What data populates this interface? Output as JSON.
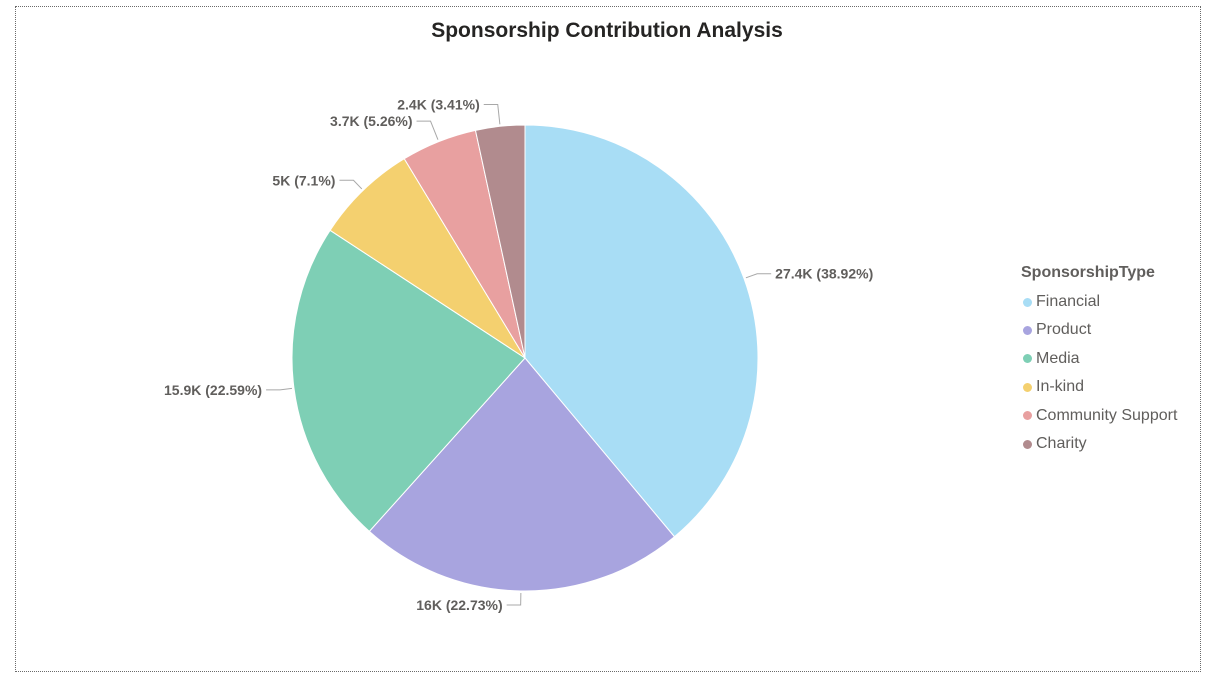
{
  "chart_data": {
    "type": "pie",
    "title": "Sponsorship Contribution Analysis",
    "legend_title": "SponsorshipType",
    "legend_position": "right",
    "slices": [
      {
        "name": "Financial",
        "value": 27.4,
        "label": "27.4K (38.92%)",
        "percent": 38.92,
        "color": "#A8DDF5"
      },
      {
        "name": "Product",
        "value": 16.0,
        "label": "16K (22.73%)",
        "percent": 22.73,
        "color": "#A8A4DF"
      },
      {
        "name": "Media",
        "value": 15.9,
        "label": "15.9K (22.59%)",
        "percent": 22.59,
        "color": "#7ECFB5"
      },
      {
        "name": "In-kind",
        "value": 5.0,
        "label": "5K (7.1%)",
        "percent": 7.1,
        "color": "#F4D06F"
      },
      {
        "name": "Community Support",
        "value": 3.7,
        "label": "3.7K (5.26%)",
        "percent": 5.26,
        "color": "#E8A0A0"
      },
      {
        "name": "Charity",
        "value": 2.4,
        "label": "2.4K (3.41%)",
        "percent": 3.41,
        "color": "#B18B8E"
      }
    ]
  }
}
